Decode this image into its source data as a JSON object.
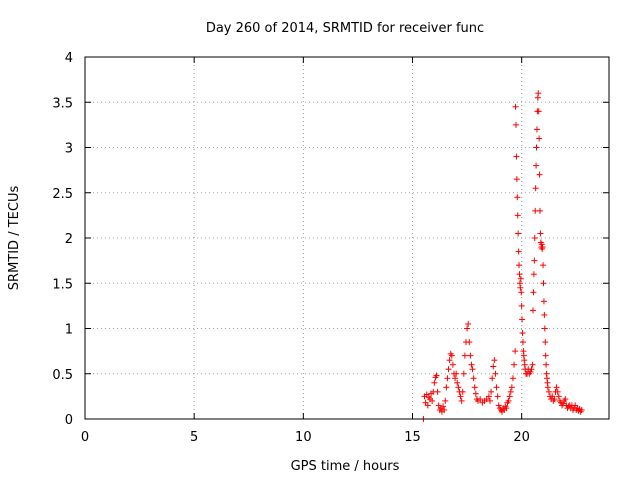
{
  "chart_data": {
    "type": "scatter",
    "title": "Day 260 of 2014, SRMTID for receiver func",
    "xlabel": "GPS time / hours",
    "ylabel": "SRMTID / TECUs",
    "xlim": [
      0,
      24
    ],
    "ylim": [
      0,
      4
    ],
    "xticks": [
      0,
      5,
      10,
      15,
      20
    ],
    "xtick_labels": [
      "0",
      "5",
      "10",
      "15",
      "20"
    ],
    "yticks": [
      0,
      0.5,
      1,
      1.5,
      2,
      2.5,
      3,
      3.5,
      4
    ],
    "ytick_labels": [
      "0",
      "0.5",
      "1",
      "1.5",
      "2",
      "2.5",
      "3",
      "3.5",
      "4"
    ],
    "grid": true,
    "marker": "+",
    "color": "#ff0000",
    "series": [
      {
        "name": "SRMTID",
        "points": [
          [
            15.5,
            0.0
          ],
          [
            15.55,
            0.25
          ],
          [
            15.6,
            0.18
          ],
          [
            15.65,
            0.27
          ],
          [
            15.7,
            0.15
          ],
          [
            15.75,
            0.24
          ],
          [
            15.8,
            0.22
          ],
          [
            15.85,
            0.28
          ],
          [
            15.9,
            0.2
          ],
          [
            15.95,
            0.3
          ],
          [
            16.0,
            0.4
          ],
          [
            16.05,
            0.46
          ],
          [
            16.1,
            0.48
          ],
          [
            16.15,
            0.3
          ],
          [
            16.2,
            0.15
          ],
          [
            16.25,
            0.1
          ],
          [
            16.3,
            0.12
          ],
          [
            16.35,
            0.08
          ],
          [
            16.4,
            0.14
          ],
          [
            16.45,
            0.1
          ],
          [
            16.5,
            0.2
          ],
          [
            16.55,
            0.35
          ],
          [
            16.6,
            0.45
          ],
          [
            16.65,
            0.55
          ],
          [
            16.7,
            0.65
          ],
          [
            16.75,
            0.72
          ],
          [
            16.8,
            0.7
          ],
          [
            16.85,
            0.6
          ],
          [
            16.9,
            0.5
          ],
          [
            16.95,
            0.45
          ],
          [
            17.0,
            0.5
          ],
          [
            17.05,
            0.4
          ],
          [
            17.1,
            0.35
          ],
          [
            17.15,
            0.3
          ],
          [
            17.2,
            0.25
          ],
          [
            17.25,
            0.2
          ],
          [
            17.3,
            0.3
          ],
          [
            17.35,
            0.5
          ],
          [
            17.4,
            0.7
          ],
          [
            17.45,
            0.85
          ],
          [
            17.5,
            1.0
          ],
          [
            17.55,
            1.05
          ],
          [
            17.6,
            0.85
          ],
          [
            17.65,
            0.7
          ],
          [
            17.7,
            0.6
          ],
          [
            17.75,
            0.55
          ],
          [
            17.8,
            0.45
          ],
          [
            17.85,
            0.35
          ],
          [
            17.9,
            0.28
          ],
          [
            17.95,
            0.22
          ],
          [
            18.0,
            0.2
          ],
          [
            18.1,
            0.22
          ],
          [
            18.2,
            0.18
          ],
          [
            18.3,
            0.2
          ],
          [
            18.4,
            0.22
          ],
          [
            18.5,
            0.25
          ],
          [
            18.55,
            0.2
          ],
          [
            18.6,
            0.3
          ],
          [
            18.65,
            0.45
          ],
          [
            18.7,
            0.58
          ],
          [
            18.75,
            0.65
          ],
          [
            18.8,
            0.5
          ],
          [
            18.85,
            0.35
          ],
          [
            18.9,
            0.25
          ],
          [
            18.95,
            0.15
          ],
          [
            19.0,
            0.12
          ],
          [
            19.05,
            0.1
          ],
          [
            19.1,
            0.08
          ],
          [
            19.15,
            0.12
          ],
          [
            19.2,
            0.1
          ],
          [
            19.25,
            0.14
          ],
          [
            19.3,
            0.12
          ],
          [
            19.35,
            0.18
          ],
          [
            19.4,
            0.2
          ],
          [
            19.45,
            0.25
          ],
          [
            19.5,
            0.3
          ],
          [
            19.55,
            0.35
          ],
          [
            19.6,
            0.45
          ],
          [
            19.65,
            0.6
          ],
          [
            19.7,
            0.75
          ],
          [
            19.72,
            3.45
          ],
          [
            19.74,
            3.25
          ],
          [
            19.76,
            2.9
          ],
          [
            19.78,
            2.65
          ],
          [
            19.8,
            2.45
          ],
          [
            19.82,
            2.25
          ],
          [
            19.84,
            2.05
          ],
          [
            19.86,
            1.85
          ],
          [
            19.88,
            1.7
          ],
          [
            19.9,
            1.6
          ],
          [
            19.92,
            1.5
          ],
          [
            19.94,
            1.45
          ],
          [
            19.96,
            1.55
          ],
          [
            19.98,
            1.4
          ],
          [
            20.0,
            1.25
          ],
          [
            20.02,
            1.1
          ],
          [
            20.04,
            0.95
          ],
          [
            20.06,
            0.85
          ],
          [
            20.08,
            0.75
          ],
          [
            20.1,
            0.7
          ],
          [
            20.12,
            0.65
          ],
          [
            20.14,
            0.6
          ],
          [
            20.16,
            0.55
          ],
          [
            20.2,
            0.5
          ],
          [
            20.25,
            0.5
          ],
          [
            20.3,
            0.55
          ],
          [
            20.35,
            0.5
          ],
          [
            20.4,
            0.52
          ],
          [
            20.45,
            0.55
          ],
          [
            20.5,
            0.6
          ],
          [
            20.52,
            1.2
          ],
          [
            20.54,
            1.4
          ],
          [
            20.56,
            1.6
          ],
          [
            20.58,
            1.75
          ],
          [
            20.6,
            2.0
          ],
          [
            20.62,
            2.3
          ],
          [
            20.64,
            2.55
          ],
          [
            20.66,
            2.8
          ],
          [
            20.68,
            3.0
          ],
          [
            20.7,
            3.2
          ],
          [
            20.72,
            3.4
          ],
          [
            20.74,
            3.55
          ],
          [
            20.76,
            3.6
          ],
          [
            20.78,
            3.4
          ],
          [
            20.8,
            3.1
          ],
          [
            20.82,
            2.7
          ],
          [
            20.84,
            2.3
          ],
          [
            20.86,
            2.05
          ],
          [
            20.88,
            1.95
          ],
          [
            20.9,
            1.9
          ],
          [
            20.92,
            1.93
          ],
          [
            20.94,
            1.88
          ],
          [
            20.96,
            1.9
          ],
          [
            20.98,
            1.7
          ],
          [
            21.0,
            1.5
          ],
          [
            21.02,
            1.3
          ],
          [
            21.04,
            1.15
          ],
          [
            21.06,
            1.0
          ],
          [
            21.08,
            0.85
          ],
          [
            21.1,
            0.7
          ],
          [
            21.12,
            0.6
          ],
          [
            21.14,
            0.5
          ],
          [
            21.16,
            0.45
          ],
          [
            21.18,
            0.4
          ],
          [
            21.2,
            0.35
          ],
          [
            21.25,
            0.3
          ],
          [
            21.3,
            0.25
          ],
          [
            21.35,
            0.22
          ],
          [
            21.4,
            0.25
          ],
          [
            21.45,
            0.2
          ],
          [
            21.5,
            0.22
          ],
          [
            21.55,
            0.3
          ],
          [
            21.6,
            0.35
          ],
          [
            21.65,
            0.3
          ],
          [
            21.7,
            0.25
          ],
          [
            21.75,
            0.2
          ],
          [
            21.8,
            0.18
          ],
          [
            21.85,
            0.15
          ],
          [
            21.9,
            0.17
          ],
          [
            21.95,
            0.2
          ],
          [
            22.0,
            0.22
          ],
          [
            22.05,
            0.15
          ],
          [
            22.1,
            0.12
          ],
          [
            22.15,
            0.14
          ],
          [
            22.2,
            0.15
          ],
          [
            22.25,
            0.12
          ],
          [
            22.3,
            0.15
          ],
          [
            22.35,
            0.1
          ],
          [
            22.4,
            0.12
          ],
          [
            22.45,
            0.15
          ],
          [
            22.5,
            0.1
          ],
          [
            22.55,
            0.12
          ],
          [
            22.6,
            0.09
          ],
          [
            22.65,
            0.11
          ],
          [
            22.7,
            0.08
          ],
          [
            22.75,
            0.1
          ]
        ]
      }
    ]
  }
}
